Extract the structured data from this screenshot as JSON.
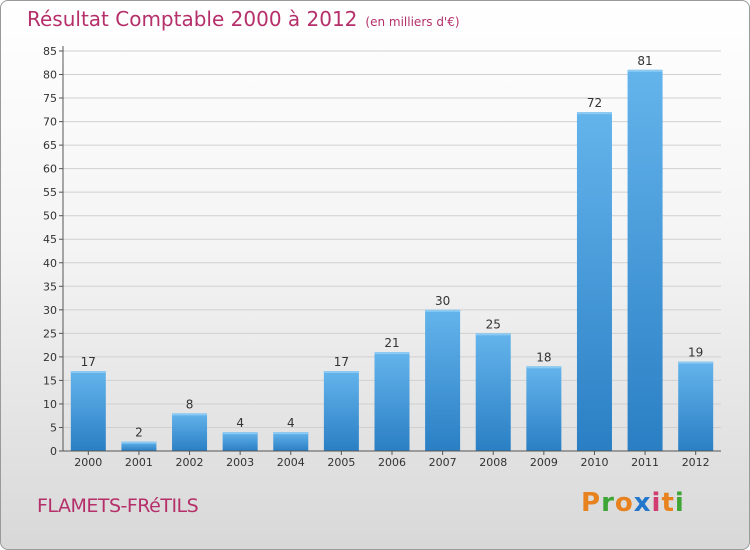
{
  "header": {
    "title": "Résultat Comptable 2000 à 2012",
    "unit": "(en milliers d'€)"
  },
  "footer": {
    "place": "FLAMETS-FRéTILS",
    "logo_letters": [
      "P",
      "r",
      "o",
      "x",
      "i",
      "t",
      "i"
    ],
    "logo_colors": [
      "#e8821e",
      "#3fa535",
      "#e8821e",
      "#2277cc",
      "#d13b6f",
      "#e8821e",
      "#3fa535"
    ]
  },
  "colors": {
    "bar_light": "#64b4ec",
    "bar_dark": "#2a7fc4",
    "title": "#b5306a",
    "grid": "#d0d0d0",
    "axis": "#555555"
  },
  "chart_data": {
    "type": "bar",
    "title": "Résultat Comptable 2000 à 2012",
    "ylabel": "(en milliers d'€)",
    "xlabel": "",
    "categories": [
      "2000",
      "2001",
      "2002",
      "2003",
      "2004",
      "2005",
      "2006",
      "2007",
      "2008",
      "2009",
      "2010",
      "2011",
      "2012"
    ],
    "values": [
      17,
      2,
      8,
      4,
      4,
      17,
      21,
      30,
      25,
      18,
      72,
      81,
      19
    ],
    "ylim": [
      0,
      85
    ],
    "yticks": [
      0,
      5,
      10,
      15,
      20,
      25,
      30,
      35,
      40,
      45,
      50,
      55,
      60,
      65,
      70,
      75,
      80,
      85
    ],
    "grid": true
  }
}
